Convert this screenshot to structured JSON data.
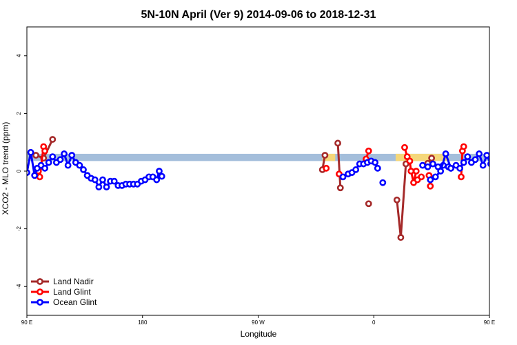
{
  "chart_data": {
    "type": "line",
    "title": "5N-10N April (Ver 9)   2014-09-06 to 2018-12-31",
    "xlabel": "Longitude",
    "ylabel": "XCO2 - MLO trend (ppm)",
    "xlim": [
      90,
      450
    ],
    "ylim": [
      -5,
      5
    ],
    "x_ticks": [
      {
        "value": 90,
        "label": "90 E"
      },
      {
        "value": 180,
        "label": "180"
      },
      {
        "value": 270,
        "label": "90 W"
      },
      {
        "value": 360,
        "label": "0"
      },
      {
        "value": 450,
        "label": "90 E"
      },
      {
        "value": 540,
        "label": "180"
      }
    ],
    "y_ticks": [
      -4,
      -2,
      0,
      2,
      4
    ],
    "grid": false,
    "legend_position": "bottom-left",
    "band": {
      "y_range": [
        0.35,
        0.6
      ],
      "land_color": "#f5d77a",
      "ocean_color": "#a4bedb",
      "land_segments": [
        [
          320,
          330
        ],
        [
          377,
          418
        ],
        [
          502,
          506
        ]
      ]
    },
    "series": [
      {
        "name": "Land Nadir",
        "color": "#a52a2a",
        "segments": [
          [
            [
              97,
              0.55
            ],
            [
              103,
              0.45
            ],
            [
              110,
              1.1
            ]
          ],
          [
            [
              320,
              0.05
            ],
            [
              322,
              0.55
            ]
          ],
          [
            [
              332,
              0.97
            ],
            [
              334,
              -0.58
            ]
          ],
          [
            [
              356,
              -1.13
            ]
          ],
          [
            [
              378,
              -1.0
            ],
            [
              381,
              -2.3
            ],
            [
              385,
              0.25
            ]
          ],
          [
            [
              402,
              0.27
            ],
            [
              405,
              0.45
            ]
          ],
          [
            [
              453,
              0.55
            ],
            [
              460,
              1.1
            ]
          ]
        ]
      },
      {
        "name": "Land Glint",
        "color": "#ff0000",
        "segments": [
          [
            [
              99,
              0.0
            ],
            [
              100,
              -0.2
            ],
            [
              103,
              0.85
            ],
            [
              104,
              0.7
            ]
          ],
          [
            [
              323,
              0.1
            ]
          ],
          [
            [
              333,
              -0.1
            ]
          ],
          [
            [
              354,
              0.42
            ],
            [
              356,
              0.7
            ]
          ],
          [
            [
              384,
              0.82
            ],
            [
              386,
              0.5
            ],
            [
              388,
              0.35
            ],
            [
              389,
              0.0
            ],
            [
              391,
              -0.4
            ],
            [
              393,
              0.0
            ]
          ],
          [
            [
              394,
              -0.3
            ],
            [
              397,
              -0.2
            ]
          ],
          [
            [
              403,
              -0.15
            ],
            [
              404,
              -0.52
            ]
          ],
          [
            [
              428,
              -0.2
            ],
            [
              429,
              0.7
            ],
            [
              430,
              0.85
            ]
          ]
        ]
      },
      {
        "name": "Ocean Glint",
        "color": "#0000ff",
        "segments": [
          [
            [
              90,
              -0.05
            ],
            [
              93,
              0.65
            ],
            [
              96,
              -0.15
            ],
            [
              98,
              0.1
            ],
            [
              101,
              0.2
            ],
            [
              104,
              0.1
            ],
            [
              107,
              0.3
            ],
            [
              110,
              0.5
            ],
            [
              113,
              0.3
            ],
            [
              116,
              0.4
            ],
            [
              119,
              0.6
            ],
            [
              122,
              0.2
            ],
            [
              125,
              0.55
            ],
            [
              128,
              0.3
            ],
            [
              131,
              0.2
            ],
            [
              134,
              0.05
            ],
            [
              137,
              -0.15
            ],
            [
              140,
              -0.25
            ],
            [
              143,
              -0.3
            ],
            [
              146,
              -0.55
            ],
            [
              149,
              -0.3
            ],
            [
              152,
              -0.55
            ],
            [
              155,
              -0.35
            ],
            [
              158,
              -0.35
            ],
            [
              161,
              -0.5
            ],
            [
              164,
              -0.5
            ],
            [
              167,
              -0.45
            ],
            [
              170,
              -0.45
            ],
            [
              173,
              -0.45
            ],
            [
              176,
              -0.45
            ],
            [
              179,
              -0.35
            ],
            [
              182,
              -0.3
            ],
            [
              185,
              -0.2
            ],
            [
              188,
              -0.2
            ],
            [
              191,
              -0.3
            ],
            [
              193,
              0.0
            ],
            [
              195,
              -0.18
            ]
          ],
          [
            [
              336,
              -0.2
            ],
            [
              340,
              -0.1
            ],
            [
              343,
              -0.05
            ],
            [
              346,
              0.05
            ],
            [
              349,
              0.25
            ],
            [
              352,
              0.25
            ],
            [
              355,
              0.3
            ],
            [
              358,
              0.35
            ],
            [
              361,
              0.3
            ],
            [
              363,
              0.1
            ]
          ],
          [
            [
              367,
              -0.4
            ]
          ],
          [
            [
              398,
              0.2
            ],
            [
              402,
              0.15
            ],
            [
              406,
              0.25
            ],
            [
              410,
              0.15
            ],
            [
              414,
              0.2
            ],
            [
              418,
              0.15
            ],
            [
              420,
              0.1
            ]
          ],
          [
            [
              404,
              -0.3
            ],
            [
              408,
              -0.2
            ],
            [
              412,
              0.0
            ],
            [
              416,
              0.6
            ],
            [
              420,
              0.1
            ],
            [
              424,
              0.2
            ],
            [
              427,
              0.1
            ],
            [
              430,
              0.3
            ],
            [
              433,
              0.5
            ],
            [
              436,
              0.3
            ],
            [
              439,
              0.4
            ],
            [
              442,
              0.6
            ],
            [
              445,
              0.2
            ],
            [
              448,
              0.55
            ],
            [
              451,
              0.25
            ],
            [
              454,
              0.2
            ],
            [
              457,
              0.0
            ],
            [
              460,
              -0.1
            ],
            [
              463,
              -0.25
            ]
          ]
        ]
      }
    ]
  }
}
